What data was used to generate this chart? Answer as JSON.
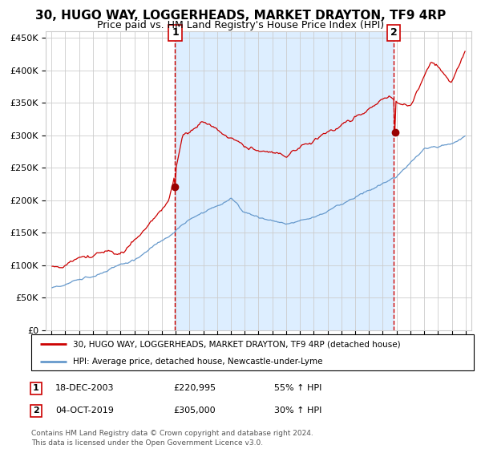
{
  "title": "30, HUGO WAY, LOGGERHEADS, MARKET DRAYTON, TF9 4RP",
  "subtitle": "Price paid vs. HM Land Registry's House Price Index (HPI)",
  "legend_line1": "30, HUGO WAY, LOGGERHEADS, MARKET DRAYTON, TF9 4RP (detached house)",
  "legend_line2": "HPI: Average price, detached house, Newcastle-under-Lyme",
  "sale1_date": "18-DEC-2003",
  "sale1_price": 220995,
  "sale1_hpi": "55% ↑ HPI",
  "sale1_label": "1",
  "sale2_date": "04-OCT-2019",
  "sale2_price": 305000,
  "sale2_hpi": "30% ↑ HPI",
  "sale2_label": "2",
  "footnote": "Contains HM Land Registry data © Crown copyright and database right 2024.\nThis data is licensed under the Open Government Licence v3.0.",
  "ylim_max": 450000,
  "start_year": 1995,
  "end_year": 2025,
  "red_color": "#cc0000",
  "blue_color": "#6699cc",
  "bg_shaded": "#ddeeff",
  "bg_white": "#ffffff",
  "grid_color": "#cccccc",
  "marker_color": "#990000"
}
